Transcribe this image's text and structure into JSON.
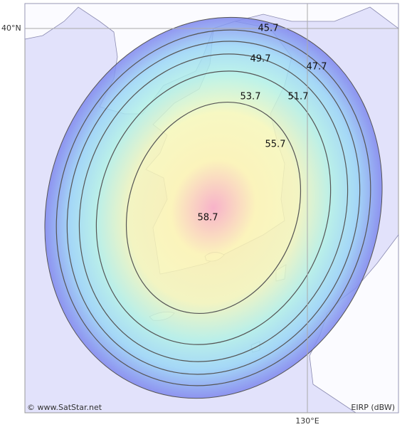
{
  "map": {
    "latitude_label": "40°N",
    "longitude_label": "130°E",
    "credit": "© www.SatStar.net",
    "legend_unit": "EIRP (dBW)",
    "contours": [
      45.7,
      47.7,
      49.7,
      51.7,
      53.7,
      55.7,
      58.7
    ]
  }
}
